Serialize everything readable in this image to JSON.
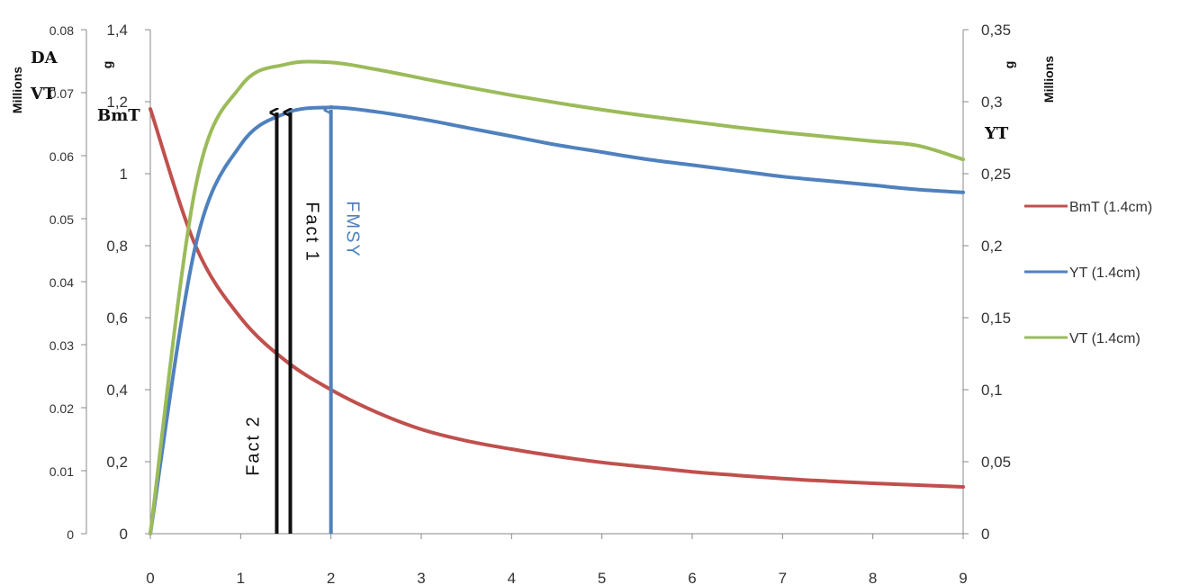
{
  "chart_data": {
    "type": "line",
    "x": [
      0,
      0.5,
      1,
      1.5,
      2,
      2.5,
      3,
      3.5,
      4,
      4.5,
      5,
      5.5,
      6,
      6.5,
      7,
      7.5,
      8,
      8.5,
      9
    ],
    "xlim": [
      0,
      9
    ],
    "xticks": [
      "0",
      "1",
      "2",
      "3",
      "4",
      "5",
      "6",
      "7",
      "8",
      "9"
    ],
    "axes": {
      "left_outer": {
        "unit_label": "Millions",
        "labels": [
          "DA",
          "VT"
        ],
        "ticks": [
          "0",
          "0.01",
          "0.02",
          "0.03",
          "0.04",
          "0.05",
          "0.06",
          "0.07",
          "0.08"
        ],
        "ylim": [
          0,
          0.08
        ]
      },
      "left_inner": {
        "unit_label": "g",
        "labels": [
          "BmT"
        ],
        "ticks": [
          "0",
          "0,2",
          "0,4",
          "0,6",
          "0,8",
          "1",
          "1,2",
          "1,4"
        ],
        "ylim": [
          0,
          1.4
        ]
      },
      "right": {
        "unit_label": "g",
        "unit_label2": "Millions",
        "labels": [
          "YT"
        ],
        "ticks": [
          "0",
          "0,05",
          "0,1",
          "0,15",
          "0,2",
          "0,25",
          "0,3",
          "0,35"
        ],
        "ylim": [
          0,
          0.35
        ]
      }
    },
    "series": [
      {
        "name": "BmT (1.4cm)",
        "color": "#c0504d",
        "axis": "left_inner",
        "values": [
          1.18,
          0.8,
          0.6,
          0.48,
          0.4,
          0.338,
          0.29,
          0.258,
          0.235,
          0.215,
          0.198,
          0.185,
          0.172,
          0.162,
          0.153,
          0.146,
          0.14,
          0.135,
          0.13
        ]
      },
      {
        "name": "YT (1.4cm)",
        "color": "#4f81bd",
        "axis": "right",
        "values": [
          0,
          0.2,
          0.27,
          0.292,
          0.296,
          0.293,
          0.288,
          0.282,
          0.276,
          0.27,
          0.265,
          0.26,
          0.256,
          0.252,
          0.248,
          0.245,
          0.242,
          0.239,
          0.237
        ]
      },
      {
        "name": "VT (1.4cm)",
        "color": "#9bbb59",
        "axis": "left_outer",
        "values": [
          0,
          0.055,
          0.071,
          0.0745,
          0.0748,
          0.0737,
          0.0723,
          0.0709,
          0.0696,
          0.0684,
          0.0673,
          0.0663,
          0.0654,
          0.0645,
          0.0637,
          0.063,
          0.0623,
          0.0616,
          0.0594
        ]
      }
    ],
    "annotations": [
      {
        "label": "Fact 2",
        "x": 1.4,
        "color": "#111111"
      },
      {
        "label": "Fact 1",
        "x": 1.55,
        "color": "#111111"
      },
      {
        "label": "FMSY",
        "x": 2.0,
        "color": "#4f81bd"
      }
    ],
    "legend_position": "right"
  }
}
